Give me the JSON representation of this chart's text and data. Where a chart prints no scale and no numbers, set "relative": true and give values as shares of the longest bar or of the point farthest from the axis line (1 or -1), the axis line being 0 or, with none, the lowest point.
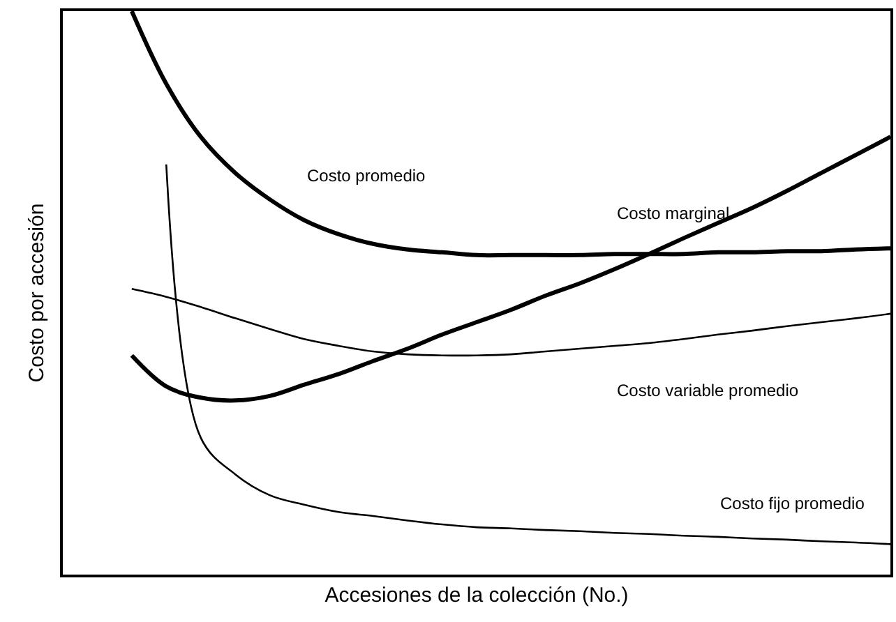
{
  "chart_data": {
    "type": "line",
    "relative": true,
    "xlabel": "Accesiones de la colección (No.)",
    "ylabel": "Costo por accesión",
    "categories": [
      null,
      null,
      null,
      null,
      null,
      null,
      null,
      null,
      null,
      null,
      null,
      null,
      null,
      null,
      null,
      null,
      null,
      null,
      null,
      null,
      null,
      null,
      null,
      null,
      null
    ],
    "series": [
      {
        "name": "Costo promedio",
        "color": "#000000",
        "values": [
          null,
          null,
          1.0,
          0.871,
          0.777,
          0.713,
          0.666,
          0.629,
          0.604,
          0.587,
          0.577,
          0.572,
          0.567,
          0.567,
          0.567,
          0.567,
          0.569,
          0.569,
          0.569,
          0.572,
          0.572,
          0.574,
          0.574,
          0.577,
          0.579
        ]
      },
      {
        "name": "Costo marginal",
        "color": "#000000",
        "values": [
          null,
          null,
          0.389,
          0.334,
          0.314,
          0.309,
          0.317,
          0.337,
          0.356,
          0.379,
          0.401,
          0.426,
          0.448,
          0.47,
          0.495,
          0.517,
          0.542,
          0.569,
          0.597,
          0.624,
          0.651,
          0.681,
          0.713,
          0.745,
          0.777
        ]
      },
      {
        "name": "Costo variable promedio",
        "color": "#000000",
        "values": [
          null,
          null,
          0.507,
          0.493,
          0.475,
          0.455,
          0.436,
          0.418,
          0.406,
          0.396,
          0.391,
          0.389,
          0.389,
          0.391,
          0.396,
          0.401,
          0.406,
          0.411,
          0.418,
          0.426,
          0.433,
          0.441,
          0.448,
          0.455,
          0.463
        ]
      },
      {
        "name": "Costo fijo promedio",
        "color": "#000000",
        "values": [
          null,
          null,
          null,
          0.728,
          0.243,
          0.178,
          0.141,
          0.124,
          0.111,
          0.104,
          0.096,
          0.089,
          0.084,
          0.082,
          0.079,
          0.077,
          0.074,
          0.072,
          0.069,
          0.067,
          0.064,
          0.062,
          0.059,
          0.057,
          0.054
        ]
      }
    ],
    "legend": false,
    "marker": "none",
    "line_style": "solid"
  }
}
